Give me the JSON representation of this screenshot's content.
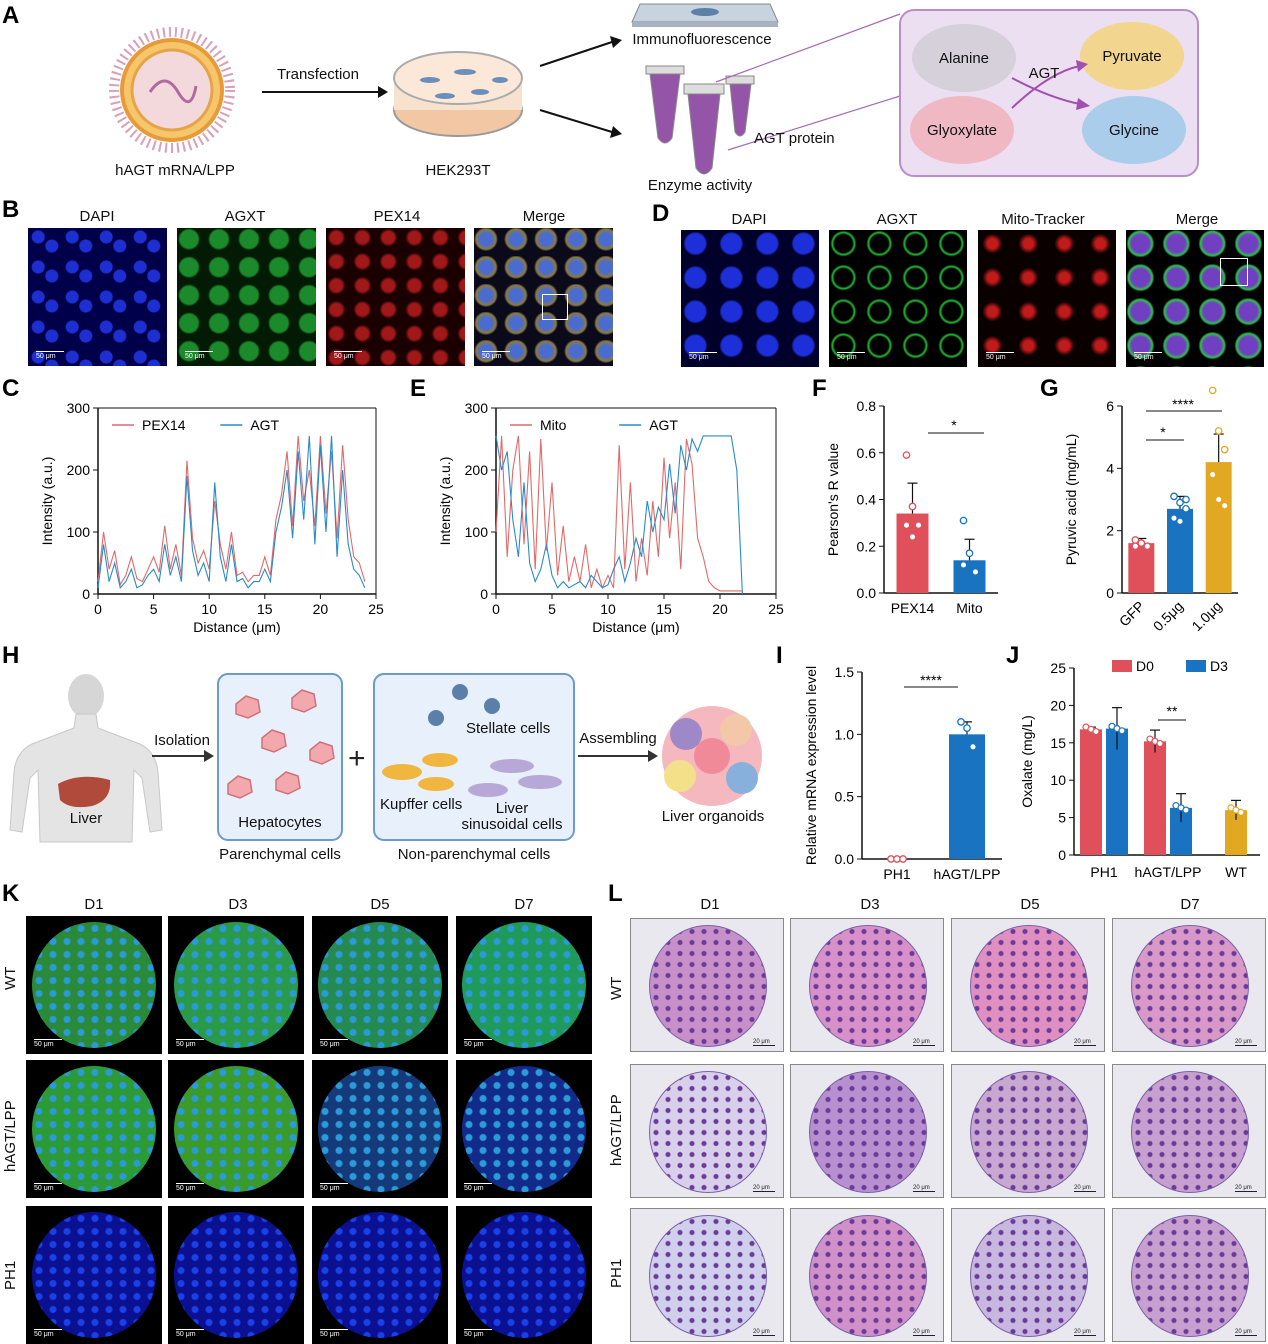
{
  "panel_labels": {
    "A": "A",
    "B": "B",
    "C": "C",
    "D": "D",
    "E": "E",
    "F": "F",
    "G": "G",
    "H": "H",
    "I": "I",
    "J": "J",
    "K": "K",
    "L": "L"
  },
  "A": {
    "lnp_label": "hAGT mRNA/LPP",
    "transfection": "Transfection",
    "cell_label": "HEK293T",
    "immuno": "Immunofluorescence",
    "agt_protein": "AGT protein",
    "enzyme": "Enzyme activity",
    "alanine": "Alanine",
    "agt": "AGT",
    "pyruvate": "Pyruvate",
    "glyoxylate": "Glyoxylate",
    "glycine": "Glycine"
  },
  "B": {
    "channels": [
      "DAPI",
      "AGXT",
      "PEX14",
      "Merge"
    ],
    "scale": "50 μm"
  },
  "D": {
    "channels": [
      "DAPI",
      "AGXT",
      "Mito-Tracker",
      "Merge"
    ],
    "scale": "50 μm"
  },
  "H": {
    "liver": "Liver",
    "isolation": "Isolation",
    "hepatocytes": "Hepatocytes",
    "parenchymal": "Parenchymal cells",
    "stellate": "Stellate cells",
    "kupffer": "Kupffer cells",
    "lsec_1": "Liver",
    "lsec_2": "sinusoidal cells",
    "nonparenchymal": "Non-parenchymal cells",
    "assembling": "Assembling",
    "organoids": "Liver organoids",
    "plus": "+"
  },
  "K": {
    "days": [
      "D1",
      "D3",
      "D5",
      "D7"
    ],
    "rows": [
      "WT",
      "hAGT/LPP",
      "PH1"
    ],
    "scale": "50 μm"
  },
  "L": {
    "days": [
      "D1",
      "D3",
      "D5",
      "D7"
    ],
    "rows": [
      "WT",
      "hAGT/LPP",
      "PH1"
    ],
    "scale": "20 μm"
  },
  "colors": {
    "red": "#e0505a",
    "blue": "#1a73c0",
    "gold": "#e3a821",
    "purple_bg": "#ecdff1",
    "pex14_line": "#e06a6a",
    "agt_line": "#2a8ac8"
  },
  "chart_data": [
    {
      "panel": "C",
      "type": "line",
      "xlabel": "Distance (μm)",
      "ylabel": "Intensity (a.u.)",
      "xlim": [
        0,
        25
      ],
      "ylim": [
        0,
        300
      ],
      "xticks": [
        0,
        5,
        10,
        15,
        20,
        25
      ],
      "yticks": [
        0,
        100,
        200,
        300
      ],
      "legend": "top-left",
      "series": [
        {
          "name": "PEX14",
          "x": [
            0,
            0.5,
            1,
            1.5,
            2,
            2.5,
            3,
            3.5,
            4,
            4.5,
            5,
            5.5,
            6,
            6.5,
            7,
            7.5,
            8,
            8.5,
            9,
            9.5,
            10,
            10.5,
            11,
            11.5,
            12,
            12.5,
            13,
            13.5,
            14,
            14.5,
            15,
            15.5,
            16,
            16.5,
            17,
            17.5,
            18,
            18.5,
            19,
            19.5,
            20,
            20.5,
            21,
            21.5,
            22,
            22.5,
            23,
            23.5,
            24
          ],
          "y": [
            20,
            100,
            40,
            70,
            15,
            30,
            60,
            25,
            20,
            40,
            60,
            35,
            110,
            40,
            80,
            30,
            215,
            90,
            50,
            70,
            40,
            150,
            80,
            40,
            100,
            30,
            35,
            20,
            30,
            30,
            60,
            30,
            120,
            160,
            230,
            110,
            255,
            150,
            200,
            110,
            255,
            130,
            230,
            90,
            240,
            120,
            60,
            50,
            20
          ]
        },
        {
          "name": "AGT",
          "x": [
            0,
            0.5,
            1,
            1.5,
            2,
            2.5,
            3,
            3.5,
            4,
            4.5,
            5,
            5.5,
            6,
            6.5,
            7,
            7.5,
            8,
            8.5,
            9,
            9.5,
            10,
            10.5,
            11,
            11.5,
            12,
            12.5,
            13,
            13.5,
            14,
            14.5,
            15,
            15.5,
            16,
            16.5,
            17,
            17.5,
            18,
            18.5,
            19,
            19.5,
            20,
            20.5,
            21,
            21.5,
            22,
            22.5,
            23,
            23.5,
            24
          ],
          "y": [
            10,
            80,
            20,
            50,
            10,
            20,
            40,
            10,
            15,
            30,
            40,
            20,
            80,
            30,
            60,
            20,
            190,
            70,
            30,
            50,
            20,
            180,
            60,
            20,
            80,
            20,
            25,
            10,
            20,
            20,
            40,
            20,
            100,
            140,
            200,
            90,
            230,
            120,
            255,
            80,
            240,
            100,
            255,
            60,
            200,
            80,
            40,
            30,
            10
          ]
        }
      ]
    },
    {
      "panel": "E",
      "type": "line",
      "xlabel": "Distance (μm)",
      "ylabel": "Intensity (a.u.)",
      "xlim": [
        0,
        25
      ],
      "ylim": [
        0,
        300
      ],
      "xticks": [
        0,
        5,
        10,
        15,
        20,
        25
      ],
      "yticks": [
        0,
        100,
        200,
        300
      ],
      "legend": "top-center",
      "series": [
        {
          "name": "Mito",
          "x": [
            0,
            0.5,
            1,
            1.5,
            2,
            2.5,
            3,
            3.5,
            4,
            4.5,
            5,
            5.5,
            6,
            6.5,
            7,
            7.5,
            8,
            8.5,
            9,
            9.5,
            10,
            10.5,
            11,
            11.5,
            12,
            12.5,
            13,
            13.5,
            14,
            14.5,
            15,
            15.5,
            16,
            16.5,
            17,
            17.5,
            18,
            18.5,
            19,
            19.5,
            20,
            20.5,
            21,
            21.5,
            22
          ],
          "y": [
            100,
            255,
            60,
            200,
            255,
            80,
            230,
            40,
            250,
            70,
            180,
            30,
            110,
            20,
            60,
            20,
            80,
            10,
            40,
            10,
            30,
            10,
            240,
            40,
            180,
            20,
            90,
            30,
            150,
            60,
            220,
            90,
            180,
            40,
            250,
            210,
            90,
            60,
            20,
            10,
            5,
            5,
            5,
            5,
            5
          ]
        },
        {
          "name": "AGT",
          "x": [
            0,
            0.5,
            1,
            1.5,
            2,
            2.5,
            3,
            3.5,
            4,
            4.5,
            5,
            5.5,
            6,
            6.5,
            7,
            7.5,
            8,
            8.5,
            9,
            9.5,
            10,
            10.5,
            11,
            11.5,
            12,
            12.5,
            13,
            13.5,
            14,
            14.5,
            15,
            15.5,
            16,
            16.5,
            17,
            17.5,
            18,
            18.5,
            19,
            19.5,
            20,
            20.5,
            21,
            21.5,
            22
          ],
          "y": [
            255,
            200,
            230,
            120,
            60,
            180,
            50,
            20,
            40,
            80,
            30,
            10,
            20,
            10,
            15,
            20,
            10,
            30,
            20,
            10,
            15,
            40,
            60,
            20,
            50,
            90,
            60,
            150,
            100,
            140,
            120,
            210,
            130,
            240,
            200,
            250,
            230,
            255,
            255,
            255,
            255,
            255,
            255,
            200,
            0
          ]
        }
      ]
    },
    {
      "panel": "F",
      "type": "bar",
      "ylabel": "Pearson's R value",
      "ylim": [
        0,
        0.8
      ],
      "yticks": [
        0.0,
        0.2,
        0.4,
        0.6,
        0.8
      ],
      "categories": [
        "PEX14",
        "Mito"
      ],
      "values": [
        0.34,
        0.14
      ],
      "errors": [
        0.13,
        0.09
      ],
      "points": [
        [
          0.59,
          0.37,
          0.29,
          0.29,
          0.24
        ],
        [
          0.31,
          0.17,
          0.09,
          0.12
        ]
      ],
      "significance": "*"
    },
    {
      "panel": "G",
      "type": "bar",
      "ylabel": "Pyruvic acid (mg/mL)",
      "ylim": [
        0,
        6
      ],
      "yticks": [
        0,
        2,
        4,
        6
      ],
      "categories": [
        "GFP",
        "0.5μg",
        "1.0μg"
      ],
      "values": [
        1.6,
        2.7,
        4.2
      ],
      "errors": [
        0.15,
        0.4,
        0.9
      ],
      "points": [
        [
          1.7,
          1.6,
          1.5,
          1.5,
          1.6
        ],
        [
          3.1,
          2.9,
          2.7,
          2.4,
          2.3,
          3.0
        ],
        [
          6.5,
          5.2,
          4.6,
          3.8,
          3.0,
          2.8
        ]
      ],
      "significance": [
        "*",
        "****"
      ]
    },
    {
      "panel": "I",
      "type": "bar",
      "ylabel": "Relative mRNA expression level",
      "ylim": [
        0,
        1.5
      ],
      "yticks": [
        0.0,
        0.5,
        1.0,
        1.5
      ],
      "categories": [
        "PH1",
        "hAGT/LPP"
      ],
      "values": [
        0.0,
        1.0
      ],
      "errors": [
        0.0,
        0.1
      ],
      "points": [
        [
          0.0,
          0.0,
          0.0
        ],
        [
          1.1,
          1.05,
          0.9
        ]
      ],
      "significance": "****"
    },
    {
      "panel": "J",
      "type": "bar",
      "ylabel": "Oxalate (mg/L)",
      "ylim": [
        0,
        25
      ],
      "yticks": [
        0,
        5,
        10,
        15,
        20,
        25
      ],
      "categories": [
        "PH1",
        "hAGT/LPP",
        "WT"
      ],
      "series": [
        {
          "name": "D0",
          "values": [
            16.8,
            15.2,
            null
          ],
          "errors": [
            0.3,
            1.5,
            null
          ]
        },
        {
          "name": "D3",
          "values": [
            16.9,
            6.3,
            6.0
          ],
          "errors": [
            2.8,
            1.9,
            1.3
          ]
        }
      ],
      "significance": "**"
    }
  ]
}
